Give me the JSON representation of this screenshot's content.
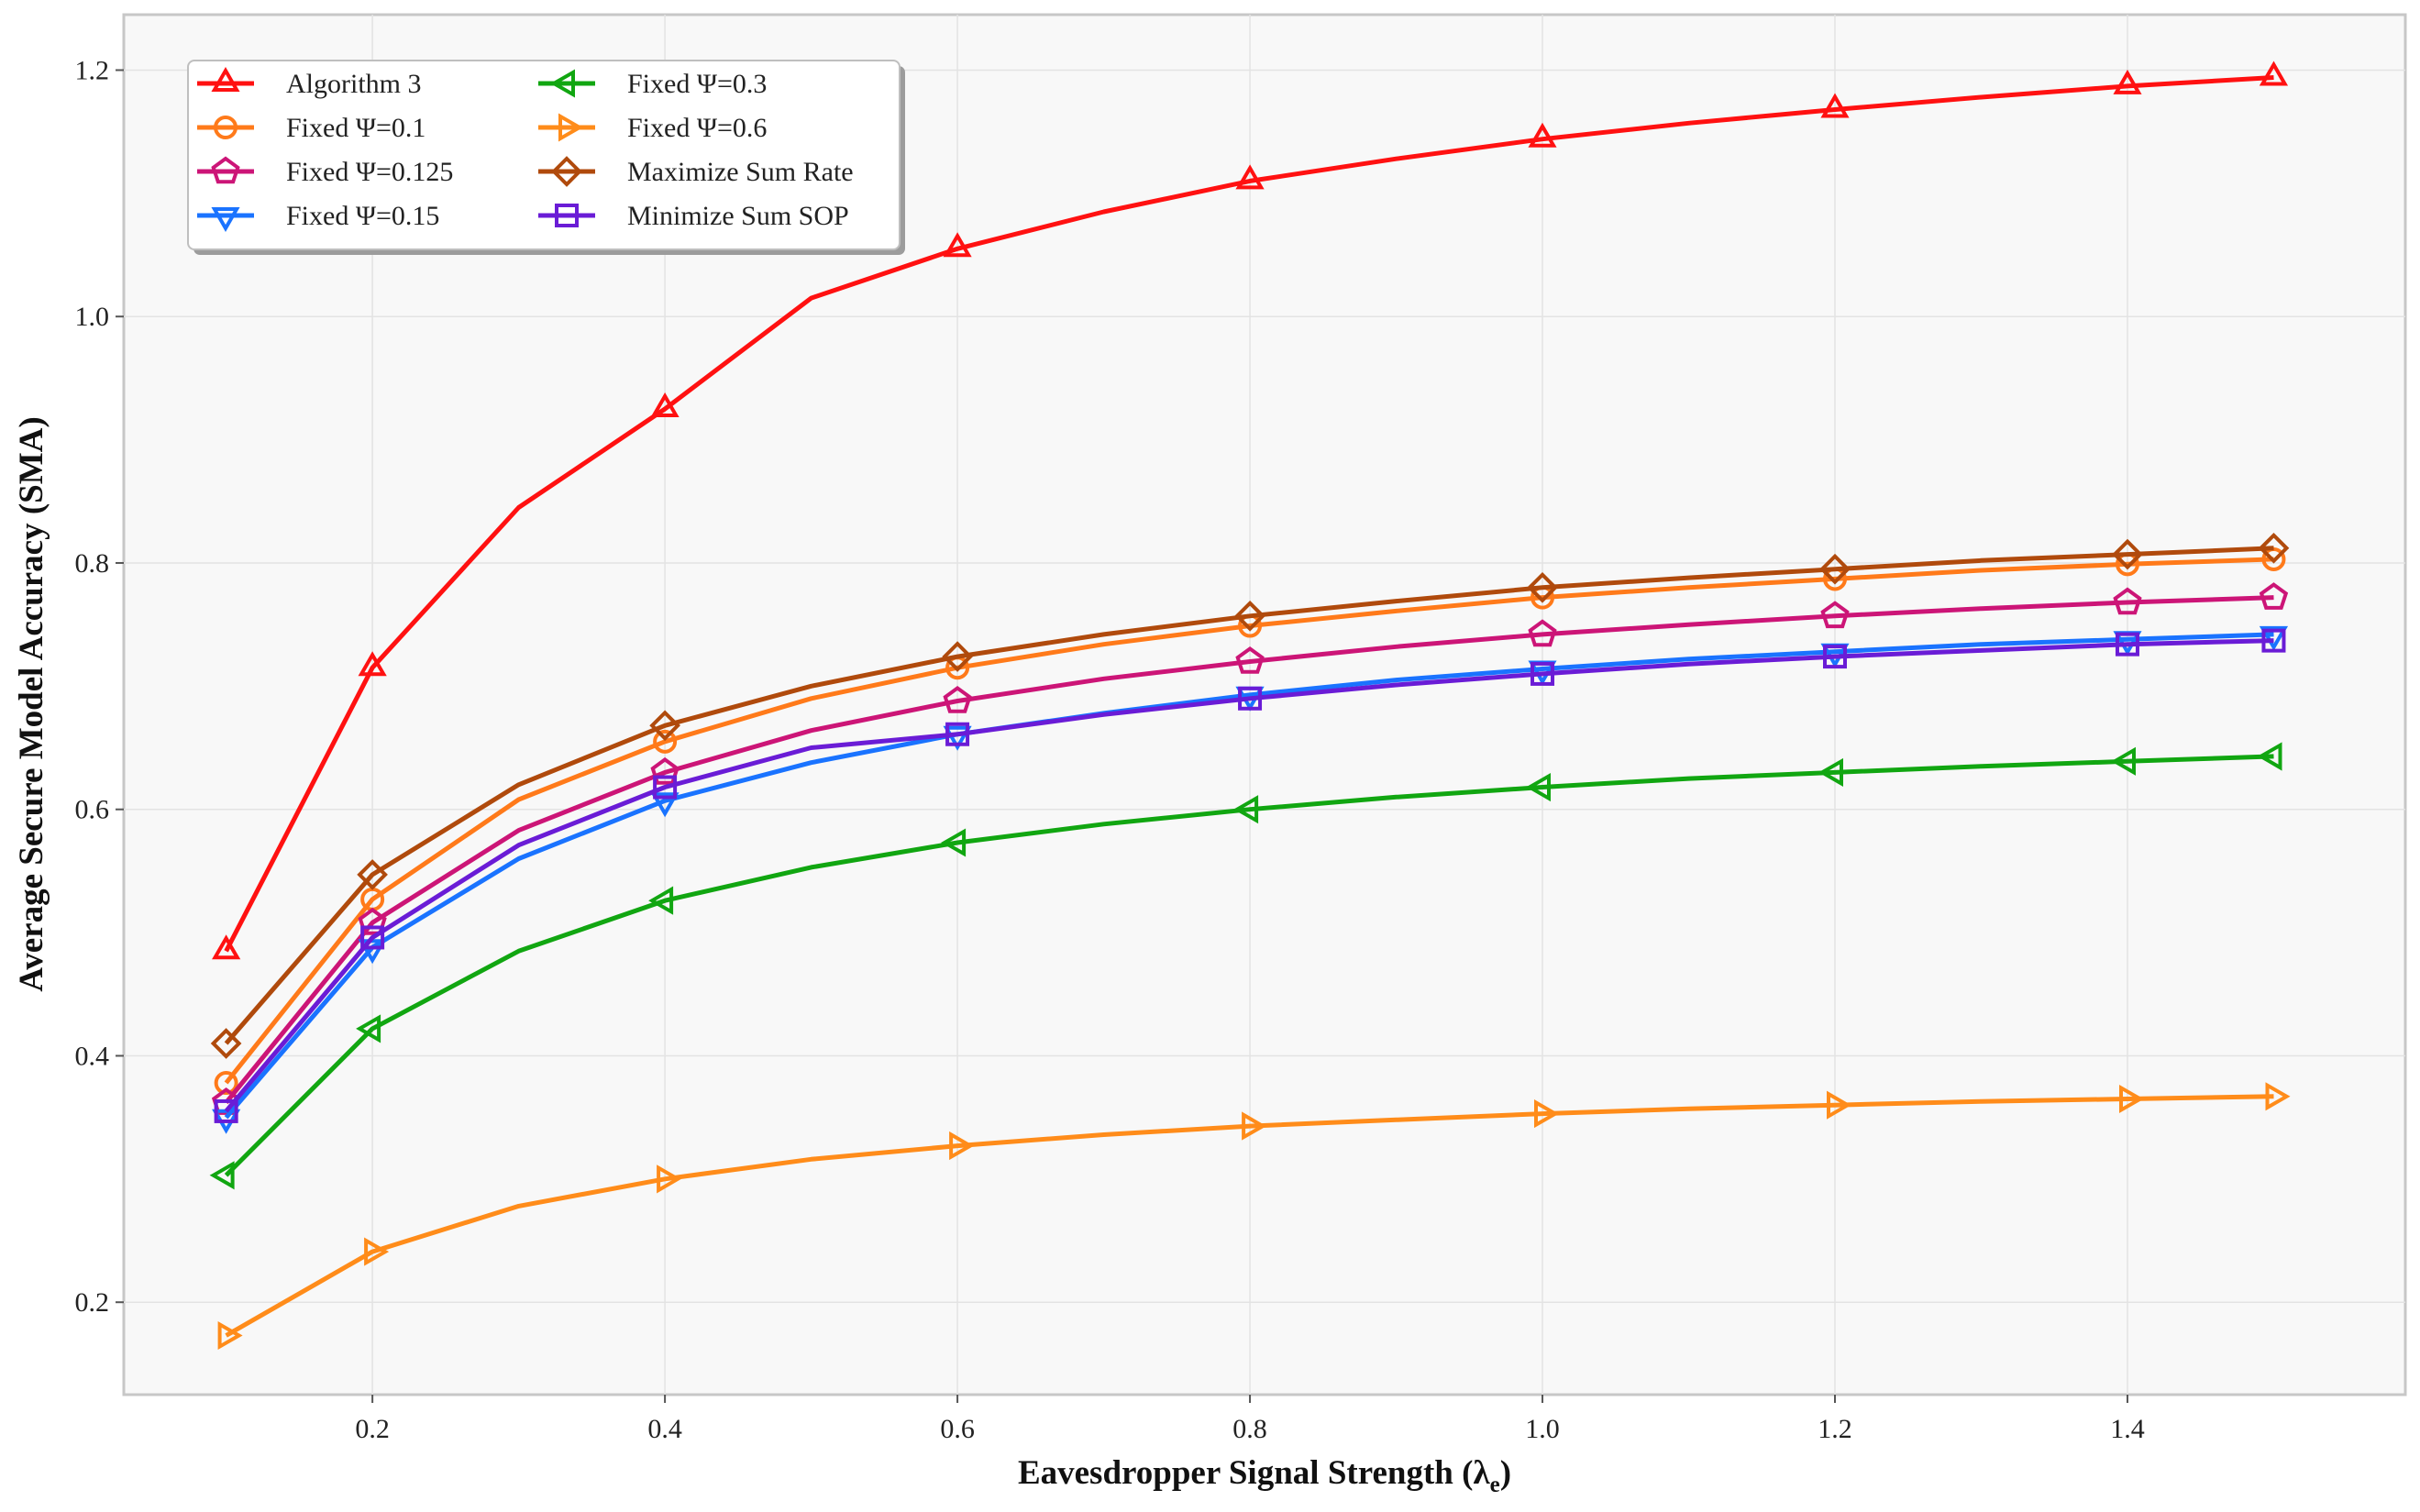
{
  "chart_data": {
    "type": "line",
    "title": "",
    "xlabel": "Eavesdropper Signal Strength (λ",
    "xlabel_subscript": "e",
    "xlabel_suffix": ")",
    "ylabel": "Average Secure Model Accuracy (SMA)",
    "xlim": [
      0.03,
      1.59
    ],
    "ylim": [
      0.125,
      1.245
    ],
    "grid": true,
    "legend_position": "top-left",
    "legend_columns": 2,
    "x_ticks": [
      0.2,
      0.4,
      0.6,
      0.8,
      1.0,
      1.2,
      1.4
    ],
    "x_tick_labels": [
      "0.2",
      "0.4",
      "0.6",
      "0.8",
      "1.0",
      "1.2",
      "1.4"
    ],
    "y_ticks": [
      0.2,
      0.4,
      0.6,
      0.8,
      1.0,
      1.2
    ],
    "y_tick_labels": [
      "0.2",
      "0.4",
      "0.6",
      "0.8",
      "1.0",
      "1.2"
    ],
    "x": [
      0.1,
      0.2,
      0.3,
      0.4,
      0.5,
      0.6,
      0.7,
      0.8,
      0.9,
      1.0,
      1.1,
      1.2,
      1.3,
      1.4,
      1.5
    ],
    "marker_x": [
      0.1,
      0.2,
      0.4,
      0.6,
      0.8,
      1.0,
      1.2,
      1.4,
      1.5
    ],
    "series": [
      {
        "name": "Algorithm 3",
        "color": "#ff1111",
        "marker": "triangle-up",
        "values": [
          0.485,
          0.715,
          0.845,
          0.925,
          1.015,
          1.055,
          1.085,
          1.11,
          1.128,
          1.144,
          1.157,
          1.168,
          1.178,
          1.187,
          1.194
        ]
      },
      {
        "name": "Fixed Ψ=0.1",
        "color": "#ff7a1a",
        "marker": "circle",
        "values": [
          0.378,
          0.527,
          0.608,
          0.655,
          0.69,
          0.715,
          0.734,
          0.749,
          0.761,
          0.772,
          0.78,
          0.787,
          0.794,
          0.799,
          0.803
        ]
      },
      {
        "name": "Fixed Ψ=0.125",
        "color": "#cc1577",
        "marker": "pentagon",
        "values": [
          0.362,
          0.508,
          0.583,
          0.63,
          0.664,
          0.688,
          0.706,
          0.72,
          0.732,
          0.742,
          0.75,
          0.757,
          0.763,
          0.768,
          0.772
        ]
      },
      {
        "name": "Fixed Ψ=0.15",
        "color": "#1a73ff",
        "marker": "triangle-down",
        "values": [
          0.35,
          0.488,
          0.56,
          0.607,
          0.638,
          0.661,
          0.678,
          0.693,
          0.705,
          0.714,
          0.722,
          0.728,
          0.734,
          0.738,
          0.742
        ]
      },
      {
        "name": "Fixed Ψ=0.3",
        "color": "#11a611",
        "marker": "triangle-left",
        "values": [
          0.303,
          0.422,
          0.485,
          0.526,
          0.553,
          0.573,
          0.588,
          0.6,
          0.61,
          0.618,
          0.625,
          0.63,
          0.635,
          0.639,
          0.643
        ]
      },
      {
        "name": "Fixed Ψ=0.6",
        "color": "#ff8c1a",
        "marker": "triangle-right",
        "values": [
          0.173,
          0.241,
          0.278,
          0.3,
          0.316,
          0.327,
          0.336,
          0.343,
          0.348,
          0.353,
          0.357,
          0.36,
          0.363,
          0.365,
          0.367
        ]
      },
      {
        "name": "Maximize Sum Rate",
        "color": "#b04a0c",
        "marker": "diamond",
        "values": [
          0.41,
          0.547,
          0.62,
          0.668,
          0.7,
          0.724,
          0.742,
          0.757,
          0.769,
          0.78,
          0.788,
          0.795,
          0.802,
          0.807,
          0.812
        ]
      },
      {
        "name": "Minimize Sum SOP",
        "color": "#6a1cd6",
        "marker": "square",
        "values": [
          0.355,
          0.496,
          0.571,
          0.618,
          0.65,
          0.661,
          0.677,
          0.69,
          0.701,
          0.71,
          0.718,
          0.724,
          0.729,
          0.734,
          0.737
        ]
      }
    ]
  }
}
